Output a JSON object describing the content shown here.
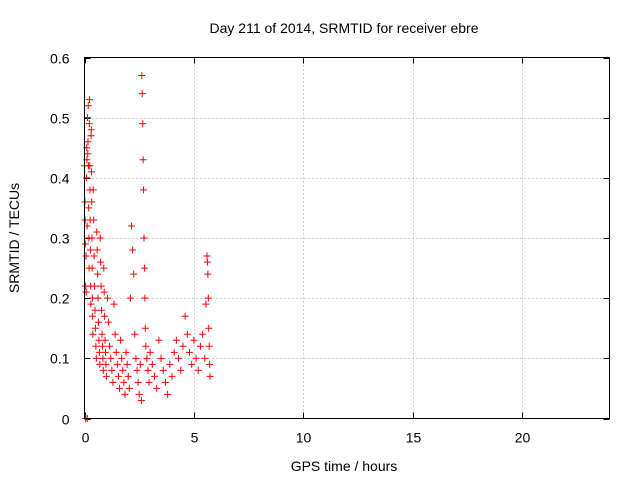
{
  "chart_data": {
    "type": "scatter",
    "title": "Day 211 of 2014, SRMTID for receiver ebre",
    "xlabel": "GPS time / hours",
    "ylabel": "SRMTID / TECUs",
    "xlim": [
      0,
      24
    ],
    "ylim": [
      0,
      0.6
    ],
    "grid": true,
    "marker": "plus",
    "x_ticks": [
      0,
      5,
      10,
      15,
      20
    ],
    "x_tick_labels": [
      "0",
      "5",
      "10",
      "15",
      "20"
    ],
    "y_ticks": [
      0,
      0.1,
      0.2,
      0.3,
      0.4,
      0.5,
      0.6
    ],
    "y_tick_labels": [
      "0",
      "0.1",
      "0.2",
      "0.3",
      "0.4",
      "0.5",
      "0.6"
    ],
    "series": [
      {
        "name": "SRMTID",
        "color": "#ff0000",
        "points": [
          [
            0.0,
            0.42
          ],
          [
            0.02,
            0.36
          ],
          [
            0.03,
            0.33
          ],
          [
            0.04,
            0.29
          ],
          [
            0.05,
            0.22
          ],
          [
            0.06,
            0.0
          ],
          [
            0.07,
            0.27
          ],
          [
            0.08,
            0.21
          ],
          [
            0.09,
            0.4
          ],
          [
            0.1,
            0.45
          ],
          [
            0.11,
            0.43
          ],
          [
            0.12,
            0.32
          ],
          [
            0.13,
            0.0
          ],
          [
            0.14,
            0.5
          ],
          [
            0.15,
            0.44
          ],
          [
            0.16,
            0.46
          ],
          [
            0.17,
            0.52
          ],
          [
            0.18,
            0.42
          ],
          [
            0.19,
            0.35
          ],
          [
            0.2,
            0.3
          ],
          [
            0.21,
            0.25
          ],
          [
            0.22,
            0.49
          ],
          [
            0.23,
            0.53
          ],
          [
            0.24,
            0.42
          ],
          [
            0.25,
            0.38
          ],
          [
            0.26,
            0.33
          ],
          [
            0.27,
            0.28
          ],
          [
            0.28,
            0.22
          ],
          [
            0.29,
            0.19
          ],
          [
            0.3,
            0.47
          ],
          [
            0.31,
            0.48
          ],
          [
            0.32,
            0.41
          ],
          [
            0.33,
            0.36
          ],
          [
            0.34,
            0.3
          ],
          [
            0.35,
            0.25
          ],
          [
            0.36,
            0.2
          ],
          [
            0.37,
            0.17
          ],
          [
            0.38,
            0.14
          ],
          [
            0.4,
            0.38
          ],
          [
            0.42,
            0.33
          ],
          [
            0.44,
            0.27
          ],
          [
            0.46,
            0.22
          ],
          [
            0.48,
            0.18
          ],
          [
            0.5,
            0.15
          ],
          [
            0.52,
            0.12
          ],
          [
            0.54,
            0.1
          ],
          [
            0.56,
            0.31
          ],
          [
            0.58,
            0.28
          ],
          [
            0.6,
            0.24
          ],
          [
            0.62,
            0.2
          ],
          [
            0.64,
            0.16
          ],
          [
            0.66,
            0.13
          ],
          [
            0.68,
            0.11
          ],
          [
            0.7,
            0.09
          ],
          [
            0.72,
            0.3
          ],
          [
            0.74,
            0.26
          ],
          [
            0.76,
            0.22
          ],
          [
            0.78,
            0.18
          ],
          [
            0.8,
            0.14
          ],
          [
            0.82,
            0.12
          ],
          [
            0.84,
            0.1
          ],
          [
            0.86,
            0.08
          ],
          [
            0.88,
            0.25
          ],
          [
            0.9,
            0.21
          ],
          [
            0.92,
            0.17
          ],
          [
            0.94,
            0.13
          ],
          [
            0.96,
            0.11
          ],
          [
            0.98,
            0.09
          ],
          [
            1.0,
            0.07
          ],
          [
            1.05,
            0.2
          ],
          [
            1.1,
            0.16
          ],
          [
            1.15,
            0.12
          ],
          [
            1.2,
            0.1
          ],
          [
            1.25,
            0.08
          ],
          [
            1.3,
            0.06
          ],
          [
            1.35,
            0.19
          ],
          [
            1.4,
            0.14
          ],
          [
            1.45,
            0.11
          ],
          [
            1.5,
            0.09
          ],
          [
            1.55,
            0.07
          ],
          [
            1.6,
            0.05
          ],
          [
            1.65,
            0.13
          ],
          [
            1.7,
            0.1
          ],
          [
            1.75,
            0.08
          ],
          [
            1.8,
            0.06
          ],
          [
            1.85,
            0.04
          ],
          [
            1.9,
            0.11
          ],
          [
            1.95,
            0.09
          ],
          [
            2.0,
            0.07
          ],
          [
            2.05,
            0.05
          ],
          [
            2.1,
            0.2
          ],
          [
            2.15,
            0.32
          ],
          [
            2.2,
            0.28
          ],
          [
            2.25,
            0.24
          ],
          [
            2.3,
            0.14
          ],
          [
            2.35,
            0.1
          ],
          [
            2.4,
            0.08
          ],
          [
            2.45,
            0.06
          ],
          [
            2.5,
            0.04
          ],
          [
            2.55,
            0.09
          ],
          [
            2.6,
            0.03
          ],
          [
            2.62,
            0.57
          ],
          [
            2.64,
            0.54
          ],
          [
            2.66,
            0.49
          ],
          [
            2.68,
            0.43
          ],
          [
            2.7,
            0.38
          ],
          [
            2.72,
            0.3
          ],
          [
            2.74,
            0.25
          ],
          [
            2.76,
            0.2
          ],
          [
            2.78,
            0.15
          ],
          [
            2.8,
            0.12
          ],
          [
            2.85,
            0.1
          ],
          [
            2.9,
            0.08
          ],
          [
            2.95,
            0.06
          ],
          [
            3.0,
            0.11
          ],
          [
            3.1,
            0.09
          ],
          [
            3.2,
            0.07
          ],
          [
            3.3,
            0.05
          ],
          [
            3.4,
            0.13
          ],
          [
            3.5,
            0.1
          ],
          [
            3.6,
            0.08
          ],
          [
            3.7,
            0.06
          ],
          [
            3.8,
            0.04
          ],
          [
            3.9,
            0.09
          ],
          [
            4.0,
            0.07
          ],
          [
            4.1,
            0.11
          ],
          [
            4.2,
            0.13
          ],
          [
            4.3,
            0.1
          ],
          [
            4.4,
            0.08
          ],
          [
            4.5,
            0.12
          ],
          [
            4.6,
            0.17
          ],
          [
            4.7,
            0.14
          ],
          [
            4.8,
            0.11
          ],
          [
            4.9,
            0.09
          ],
          [
            5.0,
            0.13
          ],
          [
            5.1,
            0.1
          ],
          [
            5.2,
            0.08
          ],
          [
            5.3,
            0.12
          ],
          [
            5.4,
            0.14
          ],
          [
            5.5,
            0.1
          ],
          [
            5.55,
            0.19
          ],
          [
            5.6,
            0.27
          ],
          [
            5.62,
            0.26
          ],
          [
            5.64,
            0.24
          ],
          [
            5.66,
            0.2
          ],
          [
            5.68,
            0.15
          ],
          [
            5.7,
            0.12
          ],
          [
            5.72,
            0.09
          ],
          [
            5.74,
            0.07
          ]
        ]
      }
    ]
  }
}
